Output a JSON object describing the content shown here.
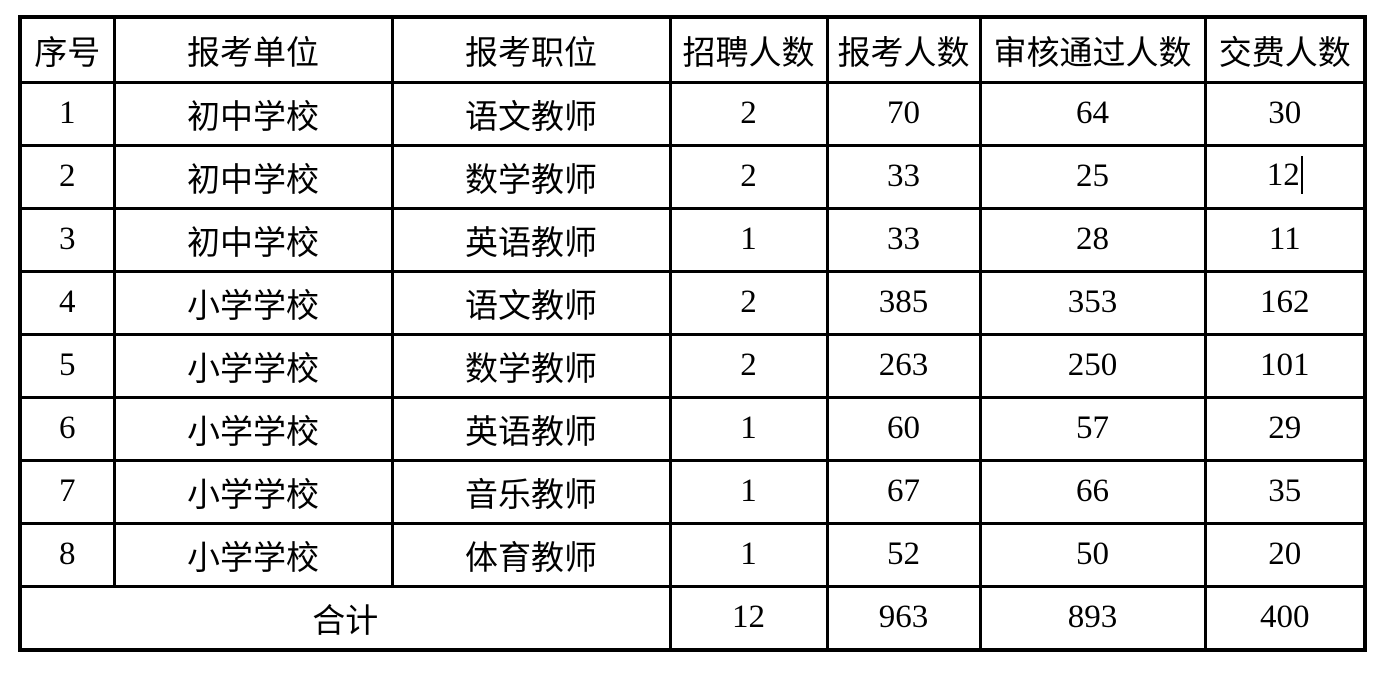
{
  "document": {
    "background": "#ffffff",
    "border_color": "#000000",
    "text_color": "#000000"
  },
  "table": {
    "column_keys": [
      "index",
      "unit",
      "position",
      "recruit-count",
      "applicant-count",
      "approved-count",
      "paid-count"
    ],
    "headers": [
      "序号",
      "报考单位",
      "报考职位",
      "招聘人数",
      "报考人数",
      "审核通过人数",
      "交费人数"
    ],
    "rows": [
      [
        "1",
        "初中学校",
        "语文教师",
        "2",
        "70",
        "64",
        "30"
      ],
      [
        "2",
        "初中学校",
        "数学教师",
        "2",
        "33",
        "25",
        "12"
      ],
      [
        "3",
        "初中学校",
        "英语教师",
        "1",
        "33",
        "28",
        "11"
      ],
      [
        "4",
        "小学学校",
        "语文教师",
        "2",
        "385",
        "353",
        "162"
      ],
      [
        "5",
        "小学学校",
        "数学教师",
        "2",
        "263",
        "250",
        "101"
      ],
      [
        "6",
        "小学学校",
        "英语教师",
        "1",
        "60",
        "57",
        "29"
      ],
      [
        "7",
        "小学学校",
        "音乐教师",
        "1",
        "67",
        "66",
        "35"
      ],
      [
        "8",
        "小学学校",
        "体育教师",
        "1",
        "52",
        "50",
        "20"
      ]
    ],
    "text_cursor": {
      "row_index": 1,
      "col_index": 6
    },
    "total_row": {
      "label": "合计",
      "label_colspan": 3,
      "values": [
        "12",
        "963",
        "893",
        "400"
      ]
    }
  }
}
